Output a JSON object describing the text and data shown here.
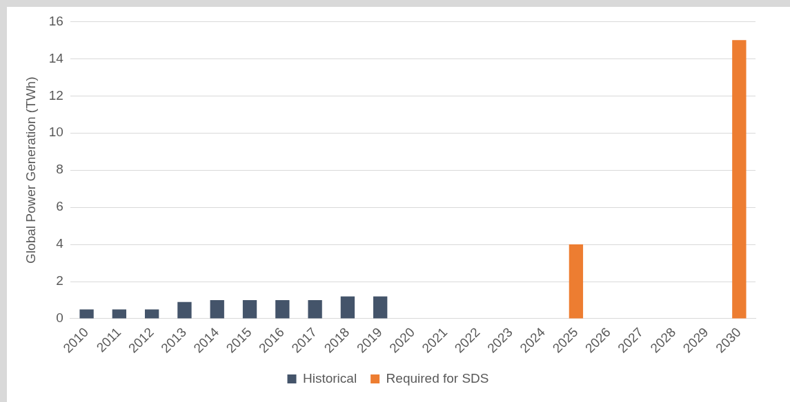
{
  "chart_data": {
    "type": "bar",
    "ylabel": "Global Power Generation (TWh)",
    "categories": [
      "2010",
      "2011",
      "2012",
      "2013",
      "2014",
      "2015",
      "2016",
      "2017",
      "2018",
      "2019",
      "2020",
      "2021",
      "2022",
      "2023",
      "2024",
      "2025",
      "2026",
      "2027",
      "2028",
      "2029",
      "2030"
    ],
    "series": [
      {
        "name": "Historical",
        "color": "#44546a",
        "values": [
          0.5,
          0.5,
          0.5,
          0.9,
          1.0,
          1.0,
          1.0,
          1.0,
          1.2,
          1.2,
          null,
          null,
          null,
          null,
          null,
          null,
          null,
          null,
          null,
          null,
          null
        ]
      },
      {
        "name": "Required for SDS",
        "color": "#ed7d31",
        "values": [
          null,
          null,
          null,
          null,
          null,
          null,
          null,
          null,
          null,
          null,
          null,
          null,
          null,
          null,
          null,
          4,
          null,
          null,
          null,
          null,
          15
        ]
      }
    ],
    "ylim": [
      0,
      16
    ],
    "yticks": [
      0,
      2,
      4,
      6,
      8,
      10,
      12,
      14,
      16
    ],
    "grid": "y",
    "legend": "bottom"
  }
}
